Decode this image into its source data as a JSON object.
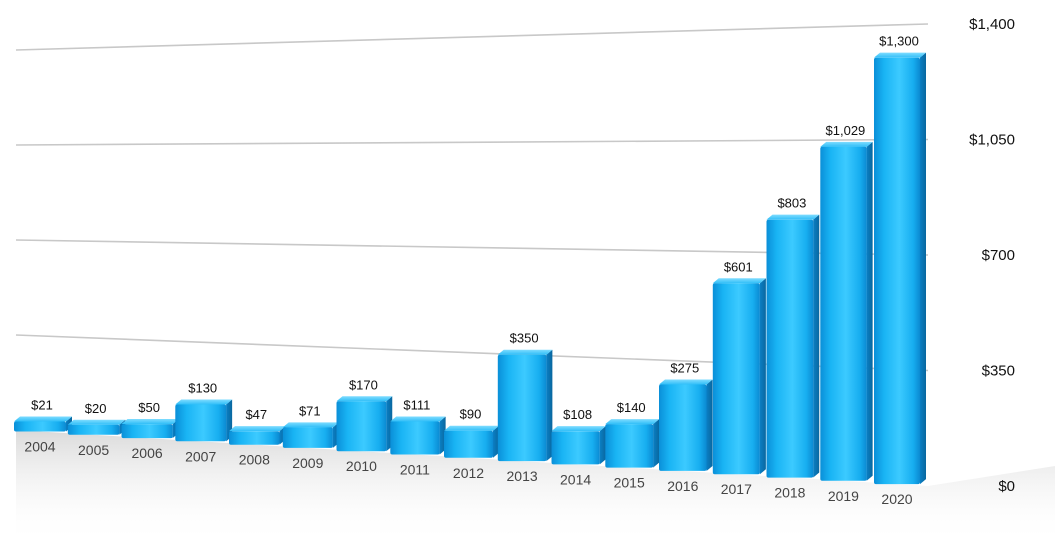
{
  "chart_data": {
    "type": "bar",
    "title": "",
    "xlabel": "",
    "ylabel": "",
    "categories": [
      "2004",
      "2005",
      "2006",
      "2007",
      "2008",
      "2009",
      "2010",
      "2011",
      "2012",
      "2013",
      "2014",
      "2015",
      "2016",
      "2017",
      "2018",
      "2019",
      "2020"
    ],
    "values": [
      21,
      20,
      50,
      130,
      47,
      71,
      170,
      111,
      90,
      350,
      108,
      140,
      275,
      601,
      803,
      1029,
      1300
    ],
    "value_labels": [
      "$21",
      "$20",
      "$50",
      "$130",
      "$47",
      "$71",
      "$170",
      "$111",
      "$90",
      "$350",
      "$108",
      "$140",
      "$275",
      "$601",
      "$803",
      "$1,029",
      "$1,300"
    ],
    "ylim": [
      0,
      1400
    ],
    "yticks": [
      0,
      350,
      700,
      1050,
      1400
    ],
    "ytick_labels": [
      "$0",
      "$350",
      "$700",
      "$1,050",
      "$1,400"
    ],
    "y_axis_position": "right",
    "grid": true,
    "style": "3d-perspective",
    "bar_color": "#1ab8f4"
  }
}
